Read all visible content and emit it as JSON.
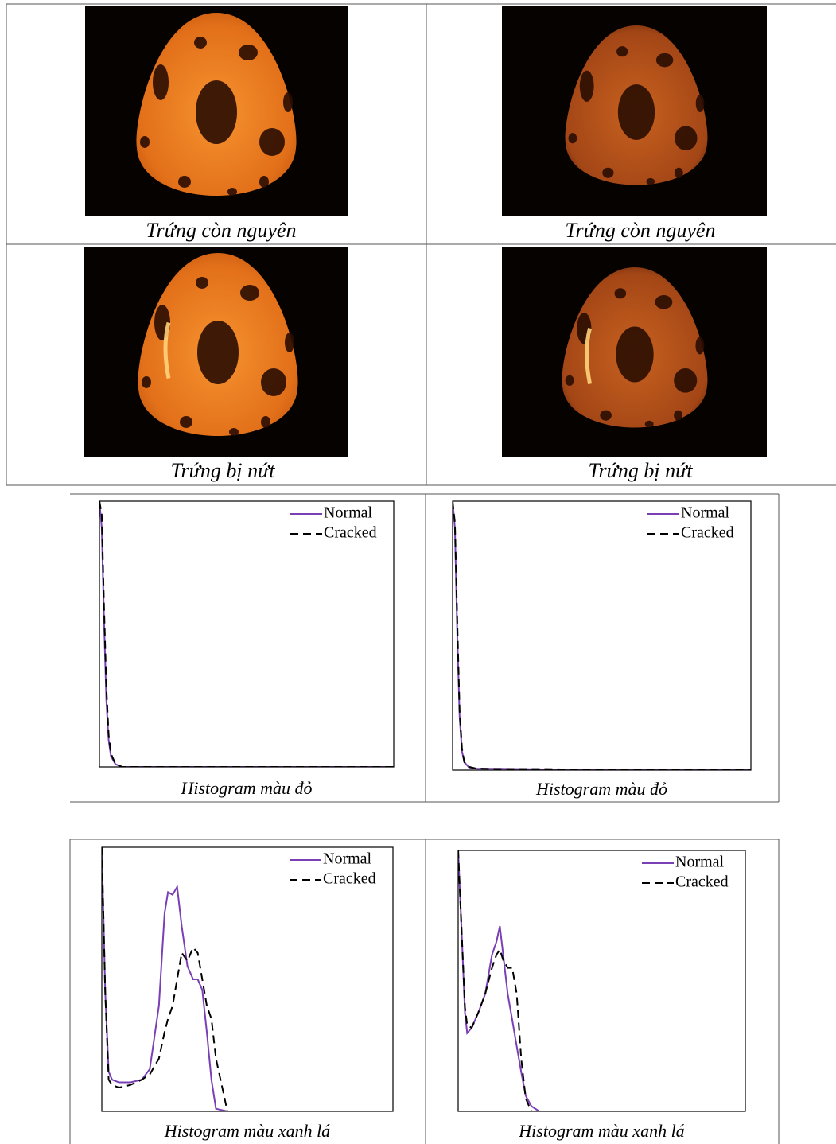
{
  "table": {
    "rows": [
      {
        "cells": [
          {
            "caption": "Trứng còn nguyên"
          },
          {
            "caption": "Trứng còn nguyên"
          }
        ]
      },
      {
        "cells": [
          {
            "caption": "Trứng bị nứt"
          },
          {
            "caption": "Trứng bị nứt"
          }
        ]
      }
    ]
  },
  "chart_data": [
    {
      "type": "line",
      "caption": "Histogram màu đỏ",
      "xlim": [
        0,
        255
      ],
      "ylim": [
        0,
        1
      ],
      "x": [
        0,
        2,
        4,
        6,
        8,
        10,
        14,
        20,
        40,
        80,
        120,
        160,
        200,
        255
      ],
      "series": [
        {
          "name": "Normal",
          "color": "#7b3fb5",
          "dashed": false,
          "values": [
            1,
            0.9,
            0.55,
            0.25,
            0.1,
            0.04,
            0.01,
            0,
            0,
            0,
            0,
            0,
            0,
            0
          ]
        },
        {
          "name": "Cracked",
          "color": "#000000",
          "dashed": true,
          "values": [
            1,
            0.95,
            0.6,
            0.3,
            0.12,
            0.05,
            0.01,
            0,
            0,
            0,
            0,
            0,
            0,
            0
          ]
        }
      ]
    },
    {
      "type": "line",
      "caption": "Histogram màu đỏ",
      "xlim": [
        0,
        255
      ],
      "ylim": [
        0,
        1
      ],
      "x": [
        0,
        2,
        4,
        6,
        8,
        10,
        14,
        20,
        40,
        80,
        120,
        160,
        200,
        255
      ],
      "series": [
        {
          "name": "Normal",
          "color": "#7b3fb5",
          "dashed": false,
          "values": [
            1,
            0.9,
            0.5,
            0.2,
            0.07,
            0.03,
            0.01,
            0.005,
            0.005,
            0.003,
            0,
            0,
            0,
            0
          ]
        },
        {
          "name": "Cracked",
          "color": "#000000",
          "dashed": true,
          "values": [
            1,
            0.92,
            0.55,
            0.22,
            0.08,
            0.03,
            0.012,
            0.006,
            0.004,
            0.004,
            0,
            0,
            0,
            0
          ]
        }
      ]
    },
    {
      "type": "line",
      "caption": "Histogram màu xanh lá",
      "xlim": [
        0,
        255
      ],
      "ylim": [
        0,
        1
      ],
      "x": [
        0,
        3,
        6,
        9,
        15,
        25,
        35,
        42,
        50,
        55,
        58,
        62,
        66,
        70,
        75,
        80,
        84,
        88,
        92,
        96,
        100,
        110,
        130,
        180,
        255
      ],
      "series": [
        {
          "name": "Normal",
          "color": "#7b3fb5",
          "dashed": false,
          "values": [
            1,
            0.45,
            0.15,
            0.12,
            0.11,
            0.11,
            0.12,
            0.16,
            0.4,
            0.75,
            0.83,
            0.82,
            0.85,
            0.7,
            0.55,
            0.5,
            0.5,
            0.46,
            0.3,
            0.12,
            0.01,
            0,
            0,
            0,
            0
          ]
        },
        {
          "name": "Cracked",
          "color": "#000000",
          "dashed": true,
          "values": [
            1,
            0.45,
            0.12,
            0.1,
            0.09,
            0.1,
            0.12,
            0.14,
            0.2,
            0.3,
            0.35,
            0.4,
            0.5,
            0.6,
            0.57,
            0.62,
            0.6,
            0.5,
            0.4,
            0.35,
            0.2,
            0,
            0,
            0,
            0
          ]
        }
      ]
    },
    {
      "type": "line",
      "caption": "Histogram màu xanh lá",
      "xlim": [
        0,
        255
      ],
      "ylim": [
        0,
        1
      ],
      "x": [
        0,
        3,
        6,
        8,
        12,
        18,
        24,
        30,
        34,
        37,
        40,
        44,
        48,
        52,
        56,
        60,
        65,
        72,
        90,
        150,
        255
      ],
      "series": [
        {
          "name": "Normal",
          "color": "#7b3fb5",
          "dashed": false,
          "values": [
            1,
            0.7,
            0.38,
            0.3,
            0.32,
            0.38,
            0.45,
            0.6,
            0.65,
            0.71,
            0.6,
            0.45,
            0.35,
            0.25,
            0.15,
            0.06,
            0.02,
            0,
            0,
            0,
            0
          ]
        },
        {
          "name": "Cracked",
          "color": "#000000",
          "dashed": true,
          "values": [
            1,
            0.7,
            0.4,
            0.33,
            0.32,
            0.38,
            0.45,
            0.55,
            0.6,
            0.62,
            0.58,
            0.55,
            0.55,
            0.45,
            0.2,
            0.05,
            0,
            0,
            0,
            0,
            0
          ]
        }
      ]
    }
  ]
}
